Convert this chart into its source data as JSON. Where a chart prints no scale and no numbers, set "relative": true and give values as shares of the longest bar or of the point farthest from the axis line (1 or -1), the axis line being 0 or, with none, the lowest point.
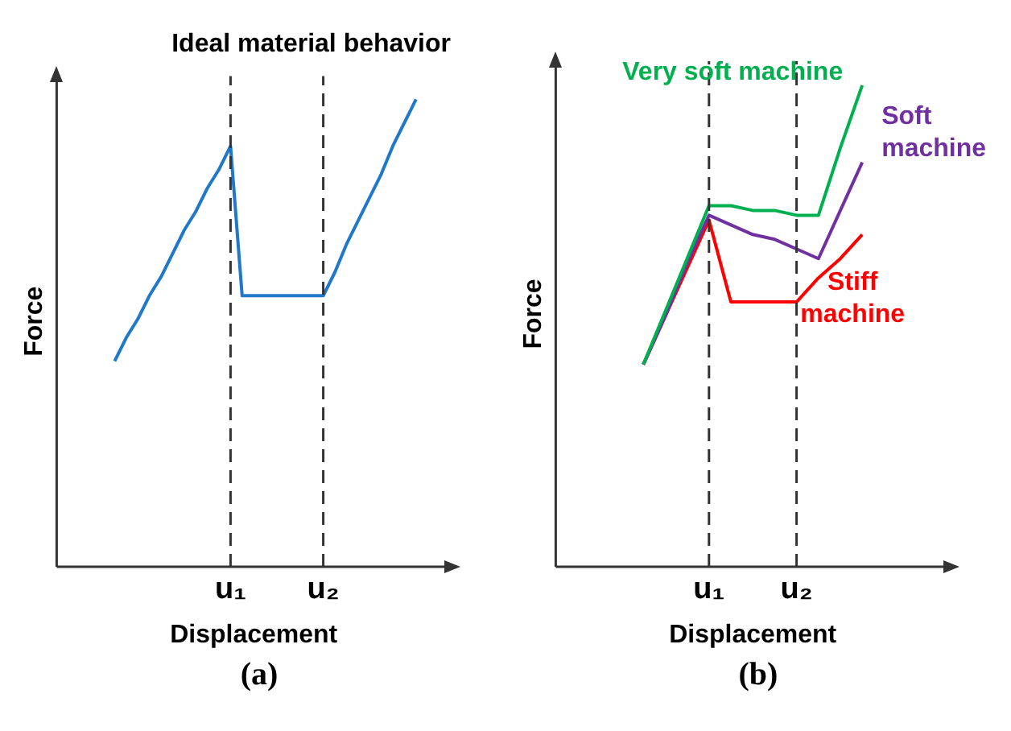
{
  "chart_data": [
    {
      "type": "line",
      "title": "Ideal material behavior",
      "xlabel": "Displacement",
      "ylabel": "Force",
      "relative": true,
      "categories": [
        null,
        null,
        null,
        null,
        null,
        null,
        null,
        null,
        null,
        null,
        null,
        null,
        null,
        null,
        null,
        "u₁",
        null,
        null,
        null,
        null,
        null,
        null,
        null,
        "u₂",
        null,
        null,
        null,
        null,
        null,
        null,
        null,
        null,
        null,
        null,
        null
      ],
      "series": [
        {
          "color": "#1f78c8",
          "values": [
            null,
            null,
            null,
            null,
            null,
            0.44,
            0.49,
            0.53,
            0.58,
            0.62,
            0.67,
            0.72,
            0.76,
            0.81,
            0.85,
            0.9,
            0.58,
            0.58,
            0.58,
            0.58,
            0.58,
            0.58,
            0.58,
            0.58,
            0.63,
            0.69,
            0.74,
            0.79,
            0.84,
            0.9,
            0.95,
            1,
            null,
            null,
            null
          ]
        }
      ],
      "ref_lines": [
        {
          "axis": "x",
          "value": "u₁",
          "line_style": "dashed",
          "color": "#333333"
        },
        {
          "axis": "x",
          "value": "u₂",
          "line_style": "dashed",
          "color": "#333333"
        }
      ],
      "annotations": [
        "(a)"
      ]
    },
    {
      "type": "line",
      "xlabel": "Displacement",
      "ylabel": "Force",
      "relative": true,
      "categories": [
        null,
        null,
        null,
        null,
        null,
        null,
        null,
        "u₁",
        null,
        null,
        null,
        "u₂",
        null,
        null,
        null,
        null,
        null,
        null,
        null
      ],
      "series": [
        {
          "name": "Very soft machine",
          "color": "#00b050",
          "values": [
            null,
            null,
            null,
            null,
            0.42,
            0.53,
            0.64,
            0.75,
            0.75,
            0.74,
            0.74,
            0.73,
            0.73,
            0.87,
            1,
            null,
            null,
            null,
            null
          ]
        },
        {
          "name": "Soft machine",
          "color": "#7030a0",
          "values": [
            null,
            null,
            null,
            null,
            0.42,
            0.52,
            0.63,
            0.73,
            0.71,
            0.69,
            0.68,
            0.66,
            0.64,
            0.74,
            0.84,
            null,
            null,
            null,
            null
          ]
        },
        {
          "name": "Stiff machine",
          "color": "#ff0000",
          "values": [
            null,
            null,
            null,
            null,
            0.42,
            0.52,
            0.62,
            0.72,
            0.55,
            0.55,
            0.55,
            0.55,
            0.6,
            0.64,
            0.69,
            null,
            null,
            null,
            null
          ]
        }
      ],
      "ref_lines": [
        {
          "axis": "x",
          "value": "u₁",
          "line_style": "dashed",
          "color": "#333333"
        },
        {
          "axis": "x",
          "value": "u₂",
          "line_style": "dashed",
          "color": "#333333"
        }
      ],
      "annotations": [
        "(b)"
      ]
    }
  ]
}
